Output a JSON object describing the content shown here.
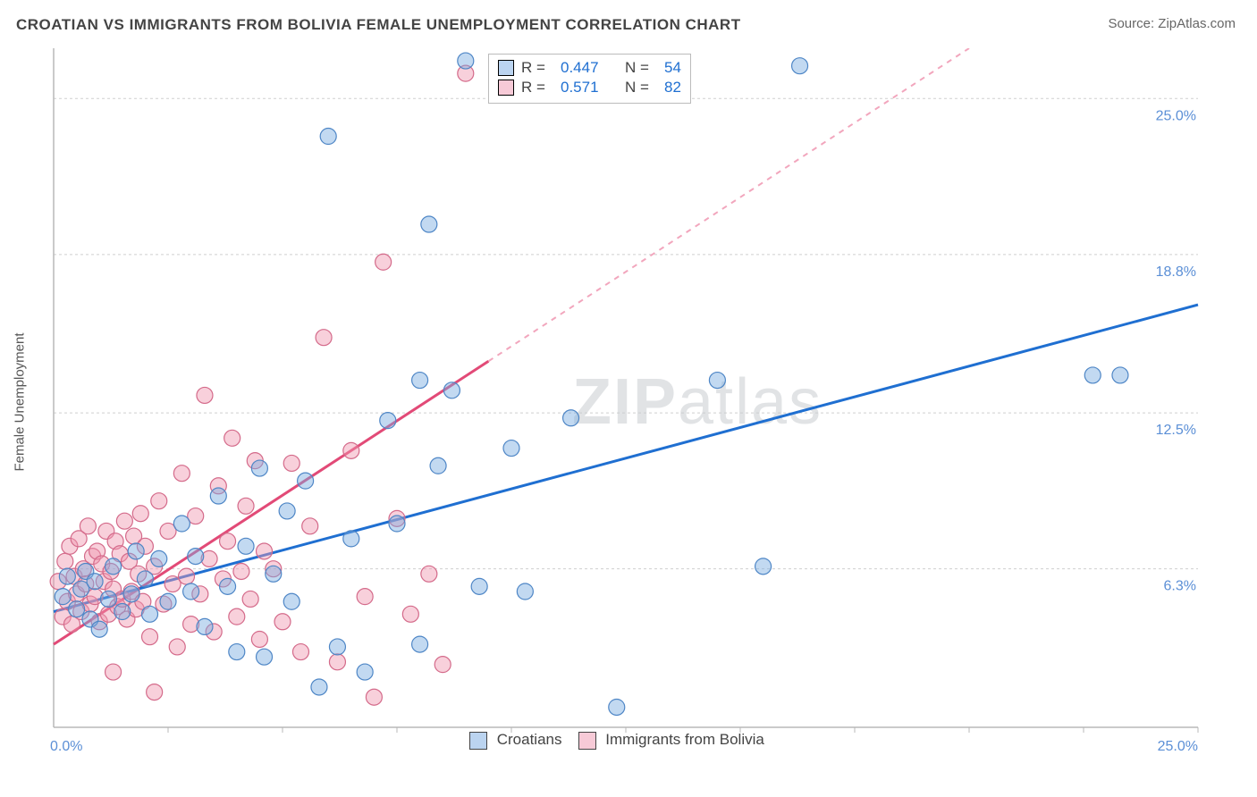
{
  "title": "CROATIAN VS IMMIGRANTS FROM BOLIVIA FEMALE UNEMPLOYMENT CORRELATION CHART",
  "source": "Source: ZipAtlas.com",
  "y_axis_label": "Female Unemployment",
  "watermark": {
    "bold": "ZIP",
    "light": "atlas"
  },
  "chart": {
    "type": "scatter",
    "xlim": [
      0,
      25
    ],
    "ylim": [
      0,
      27
    ],
    "x_start_label": "0.0%",
    "x_end_label": "25.0%",
    "y_ticks": [
      {
        "v": 6.3,
        "label": "6.3%"
      },
      {
        "v": 12.5,
        "label": "12.5%"
      },
      {
        "v": 18.8,
        "label": "18.8%"
      },
      {
        "v": 25.0,
        "label": "25.0%"
      }
    ],
    "x_tick_positions": [
      2.5,
      5,
      7.5,
      10,
      12.5,
      15,
      17.5,
      20,
      22.5,
      25
    ],
    "background": "#ffffff",
    "grid_color": "#cfcfcf",
    "axis_color": "#b8b8b8",
    "marker_radius": 9,
    "series": {
      "blue": {
        "label": "Croatians",
        "R": "0.447",
        "N": "54",
        "fill": "rgba(120,170,225,0.45)",
        "stroke": "#4e86c6",
        "trend_color": "#1f6fd1",
        "trend": {
          "x1": 0,
          "y1": 4.6,
          "x2": 25,
          "y2": 16.8,
          "solid_until_x": 25
        },
        "points": [
          [
            0.2,
            5.2
          ],
          [
            0.3,
            6.0
          ],
          [
            0.5,
            4.7
          ],
          [
            0.6,
            5.5
          ],
          [
            0.7,
            6.2
          ],
          [
            0.8,
            4.3
          ],
          [
            0.9,
            5.8
          ],
          [
            1.0,
            3.9
          ],
          [
            1.2,
            5.1
          ],
          [
            1.3,
            6.4
          ],
          [
            1.5,
            4.6
          ],
          [
            1.7,
            5.3
          ],
          [
            1.8,
            7.0
          ],
          [
            2.0,
            5.9
          ],
          [
            2.1,
            4.5
          ],
          [
            2.3,
            6.7
          ],
          [
            2.5,
            5.0
          ],
          [
            2.8,
            8.1
          ],
          [
            3.0,
            5.4
          ],
          [
            3.1,
            6.8
          ],
          [
            3.3,
            4.0
          ],
          [
            3.6,
            9.2
          ],
          [
            3.8,
            5.6
          ],
          [
            4.0,
            3.0
          ],
          [
            4.2,
            7.2
          ],
          [
            4.5,
            10.3
          ],
          [
            4.6,
            2.8
          ],
          [
            4.8,
            6.1
          ],
          [
            5.1,
            8.6
          ],
          [
            5.2,
            5.0
          ],
          [
            5.5,
            9.8
          ],
          [
            5.8,
            1.6
          ],
          [
            6.0,
            23.5
          ],
          [
            6.2,
            3.2
          ],
          [
            6.5,
            7.5
          ],
          [
            6.8,
            2.2
          ],
          [
            7.3,
            12.2
          ],
          [
            7.5,
            8.1
          ],
          [
            8.0,
            13.8
          ],
          [
            8.0,
            3.3
          ],
          [
            8.2,
            20.0
          ],
          [
            8.4,
            10.4
          ],
          [
            8.7,
            13.4
          ],
          [
            9.0,
            26.5
          ],
          [
            9.3,
            5.6
          ],
          [
            10.0,
            11.1
          ],
          [
            10.3,
            5.4
          ],
          [
            11.3,
            12.3
          ],
          [
            12.3,
            0.8
          ],
          [
            14.5,
            13.8
          ],
          [
            15.5,
            6.4
          ],
          [
            16.3,
            26.3
          ],
          [
            22.7,
            14.0
          ],
          [
            23.3,
            14.0
          ]
        ]
      },
      "pink": {
        "label": "Immigrants from Bolivia",
        "R": "0.571",
        "N": "82",
        "fill": "rgba(240,150,175,0.45)",
        "stroke": "#d46a8a",
        "trend_color": "#e24a77",
        "trend": {
          "x1": 0,
          "y1": 3.3,
          "x2": 20,
          "y2": 27.0,
          "solid_until_x": 9.5
        },
        "points": [
          [
            0.1,
            5.8
          ],
          [
            0.2,
            4.4
          ],
          [
            0.25,
            6.6
          ],
          [
            0.3,
            5.0
          ],
          [
            0.35,
            7.2
          ],
          [
            0.4,
            4.1
          ],
          [
            0.45,
            6.0
          ],
          [
            0.5,
            5.3
          ],
          [
            0.55,
            7.5
          ],
          [
            0.6,
            4.6
          ],
          [
            0.65,
            6.3
          ],
          [
            0.7,
            5.7
          ],
          [
            0.75,
            8.0
          ],
          [
            0.8,
            4.9
          ],
          [
            0.85,
            6.8
          ],
          [
            0.9,
            5.2
          ],
          [
            0.95,
            7.0
          ],
          [
            1.0,
            4.2
          ],
          [
            1.05,
            6.5
          ],
          [
            1.1,
            5.8
          ],
          [
            1.15,
            7.8
          ],
          [
            1.2,
            4.5
          ],
          [
            1.25,
            6.2
          ],
          [
            1.3,
            5.5
          ],
          [
            1.35,
            7.4
          ],
          [
            1.4,
            4.8
          ],
          [
            1.45,
            6.9
          ],
          [
            1.5,
            5.1
          ],
          [
            1.55,
            8.2
          ],
          [
            1.6,
            4.3
          ],
          [
            1.65,
            6.6
          ],
          [
            1.7,
            5.4
          ],
          [
            1.75,
            7.6
          ],
          [
            1.8,
            4.7
          ],
          [
            1.85,
            6.1
          ],
          [
            1.9,
            8.5
          ],
          [
            1.95,
            5.0
          ],
          [
            2.0,
            7.2
          ],
          [
            2.1,
            3.6
          ],
          [
            2.2,
            6.4
          ],
          [
            2.3,
            9.0
          ],
          [
            2.4,
            4.9
          ],
          [
            2.5,
            7.8
          ],
          [
            2.6,
            5.7
          ],
          [
            2.7,
            3.2
          ],
          [
            2.8,
            10.1
          ],
          [
            2.9,
            6.0
          ],
          [
            3.0,
            4.1
          ],
          [
            3.1,
            8.4
          ],
          [
            3.2,
            5.3
          ],
          [
            3.3,
            13.2
          ],
          [
            3.4,
            6.7
          ],
          [
            3.5,
            3.8
          ],
          [
            3.6,
            9.6
          ],
          [
            3.7,
            5.9
          ],
          [
            3.8,
            7.4
          ],
          [
            3.9,
            11.5
          ],
          [
            4.0,
            4.4
          ],
          [
            4.1,
            6.2
          ],
          [
            4.2,
            8.8
          ],
          [
            4.3,
            5.1
          ],
          [
            4.4,
            10.6
          ],
          [
            4.5,
            3.5
          ],
          [
            4.6,
            7.0
          ],
          [
            4.8,
            6.3
          ],
          [
            5.0,
            4.2
          ],
          [
            5.2,
            10.5
          ],
          [
            5.4,
            3.0
          ],
          [
            5.6,
            8.0
          ],
          [
            5.9,
            15.5
          ],
          [
            6.2,
            2.6
          ],
          [
            6.5,
            11.0
          ],
          [
            6.8,
            5.2
          ],
          [
            7.0,
            1.2
          ],
          [
            7.2,
            18.5
          ],
          [
            7.5,
            8.3
          ],
          [
            7.8,
            4.5
          ],
          [
            8.2,
            6.1
          ],
          [
            8.5,
            2.5
          ],
          [
            9.0,
            26.0
          ],
          [
            1.3,
            2.2
          ],
          [
            2.2,
            1.4
          ]
        ]
      }
    }
  },
  "legend_top_labels": {
    "R": "R =",
    "N": "N ="
  },
  "legend_bottom": [
    {
      "series": "blue",
      "text": "Croatians"
    },
    {
      "series": "pink",
      "text": "Immigrants from Bolivia"
    }
  ]
}
